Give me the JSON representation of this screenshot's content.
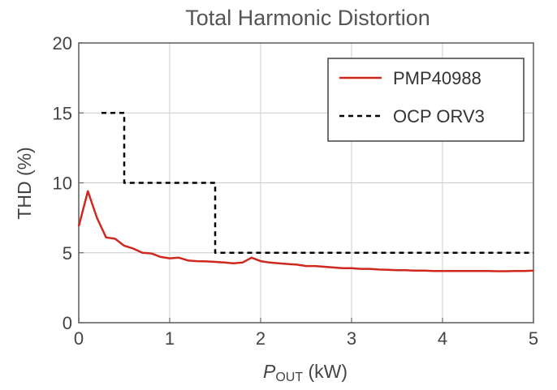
{
  "chart_data": {
    "type": "line",
    "title": "Total Harmonic Distortion",
    "xlabel_main": "P",
    "xlabel_sub": "OUT",
    "xlabel_unit": " (kW)",
    "ylabel": "THD (%)",
    "xlim": [
      0,
      5
    ],
    "ylim": [
      0,
      20
    ],
    "xticks": [
      0,
      1,
      2,
      3,
      4,
      5
    ],
    "yticks": [
      0,
      5,
      10,
      15,
      20
    ],
    "x_tick_labels": [
      "0",
      "1",
      "2",
      "3",
      "4",
      "5"
    ],
    "y_tick_labels": [
      "0",
      "5",
      "10",
      "15",
      "20"
    ],
    "grid": true,
    "legend_position": "top-right",
    "series": [
      {
        "name": "PMP40988",
        "color": "#d0281f",
        "style": "solid",
        "x": [
          0.0,
          0.1,
          0.2,
          0.3,
          0.4,
          0.5,
          0.6,
          0.7,
          0.8,
          0.9,
          1.0,
          1.1,
          1.2,
          1.3,
          1.4,
          1.5,
          1.6,
          1.7,
          1.8,
          1.9,
          2.0,
          2.1,
          2.2,
          2.3,
          2.4,
          2.5,
          2.6,
          2.7,
          2.8,
          2.9,
          3.0,
          3.1,
          3.2,
          3.3,
          3.4,
          3.5,
          3.6,
          3.7,
          3.8,
          3.9,
          4.0,
          4.1,
          4.2,
          4.3,
          4.4,
          4.5,
          4.6,
          4.7,
          4.8,
          4.9,
          5.0
        ],
        "y": [
          6.9,
          9.4,
          7.5,
          6.1,
          6.0,
          5.5,
          5.3,
          5.0,
          4.95,
          4.7,
          4.6,
          4.65,
          4.45,
          4.4,
          4.38,
          4.35,
          4.3,
          4.25,
          4.3,
          4.65,
          4.4,
          4.3,
          4.25,
          4.2,
          4.15,
          4.05,
          4.05,
          4.0,
          3.95,
          3.9,
          3.9,
          3.85,
          3.85,
          3.8,
          3.78,
          3.75,
          3.75,
          3.72,
          3.72,
          3.7,
          3.7,
          3.7,
          3.7,
          3.7,
          3.7,
          3.7,
          3.68,
          3.68,
          3.7,
          3.7,
          3.72
        ]
      },
      {
        "name": "OCP ORV3",
        "color": "#000000",
        "style": "dashed",
        "x": [
          0.25,
          0.5,
          0.5,
          1.5,
          1.5,
          5.0
        ],
        "y": [
          15,
          15,
          10,
          10,
          5,
          5
        ]
      }
    ]
  }
}
